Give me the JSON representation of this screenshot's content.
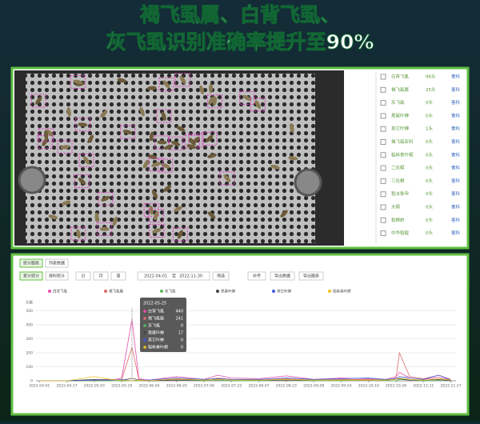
{
  "header": {
    "title_lines": [
      "褐飞虱属、白背飞虱、",
      "灰飞虱识别准确率提升至90%"
    ]
  },
  "species_list": [
    {
      "name": "白背飞虱",
      "count": "96头",
      "tag": "害科"
    },
    {
      "name": "褐飞虱属",
      "count": "25头",
      "tag": "害科"
    },
    {
      "name": "灰飞虱",
      "count": "0头",
      "tag": "害科"
    },
    {
      "name": "黑尾叶蝉",
      "count": "0头",
      "tag": "害科"
    },
    {
      "name": "其它叶蝉",
      "count": "1头",
      "tag": "害科"
    },
    {
      "name": "褐飞虱亚科",
      "count": "0头",
      "tag": "害科"
    },
    {
      "name": "稻纵卷叶螟",
      "count": "0头",
      "tag": "害科"
    },
    {
      "name": "二化螟",
      "count": "0头",
      "tag": "害科"
    },
    {
      "name": "三化螟",
      "count": "0头",
      "tag": "害科"
    },
    {
      "name": "稻水象甲",
      "count": "0头",
      "tag": "害科"
    },
    {
      "name": "大螟",
      "count": "0头",
      "tag": "害科"
    },
    {
      "name": "稻螟蛉",
      "count": "0头",
      "tag": "害科"
    },
    {
      "name": "中华稻蝗",
      "count": "0头",
      "tag": "害科"
    }
  ],
  "toolbar": {
    "tabs": [
      "统计图表",
      "列表数据"
    ],
    "buttons": [
      "累计统计",
      "按时统计",
      "日",
      "月",
      "周"
    ],
    "date_start": "2022-04-01",
    "date_sep": "至",
    "date_end": "2022-11-30",
    "actions": [
      "筛选",
      "补传",
      "导出数据",
      "导出图表"
    ]
  },
  "chart_data": {
    "type": "line",
    "y_label": "头数",
    "x": [
      "2022-04-01",
      "2022-04-17",
      "2022-05-03",
      "2022-05-15",
      "2022-05-19",
      "2022-05-25",
      "2022-05-29",
      "2022-06-04",
      "2022-06-20",
      "2022-07-06",
      "2022-07-14",
      "2022-07-22",
      "2022-08-07",
      "2022-08-23",
      "2022-09-08",
      "2022-09-24",
      "2022-10-10",
      "2022-10-20",
      "2022-10-26",
      "2022-10-28",
      "2022-11-03",
      "2022-11-11",
      "2022-11-20",
      "2022-11-27"
    ],
    "xlim": [
      "2022-03-30",
      "2022-11-30"
    ],
    "xticks": [
      "2022-04-01",
      "2022-04-17",
      "2022-05-03",
      "2022-05-19",
      "2022-06-04",
      "2022-06-20",
      "2022-07-06",
      "2022-07-22",
      "2022-08-07",
      "2022-08-23",
      "2022-09-08",
      "2022-09-24",
      "2022-10-10",
      "2022-10-26",
      "2022-11-11",
      "2022-11-27"
    ],
    "ylim": [
      0,
      520
    ],
    "yticks": [
      0,
      100,
      200,
      300,
      400,
      500
    ],
    "grid": true,
    "series": [
      {
        "name": "白背飞虱",
        "color": "#e64fb0",
        "values": [
          0,
          0,
          5,
          10,
          20,
          440,
          15,
          5,
          30,
          10,
          40,
          20,
          15,
          35,
          10,
          20,
          15,
          10,
          30,
          60,
          20,
          10,
          25,
          5
        ]
      },
      {
        "name": "褐飞虱属",
        "color": "#e06a6a",
        "values": [
          0,
          0,
          0,
          5,
          10,
          241,
          10,
          0,
          10,
          5,
          20,
          10,
          5,
          15,
          5,
          10,
          10,
          5,
          20,
          200,
          30,
          15,
          40,
          10
        ]
      },
      {
        "name": "灰飞虱",
        "color": "#5cb85c",
        "values": [
          0,
          0,
          0,
          0,
          0,
          0,
          0,
          0,
          5,
          0,
          5,
          0,
          0,
          5,
          0,
          0,
          5,
          0,
          0,
          10,
          5,
          0,
          5,
          0
        ]
      },
      {
        "name": "黑尾叶蝉",
        "color": "#444444",
        "values": [
          0,
          0,
          10,
          5,
          5,
          17,
          5,
          0,
          5,
          5,
          10,
          5,
          5,
          5,
          5,
          5,
          5,
          5,
          10,
          15,
          5,
          5,
          10,
          0
        ]
      },
      {
        "name": "其它叶蝉",
        "color": "#3b5bdb",
        "values": [
          0,
          0,
          5,
          5,
          10,
          0,
          5,
          5,
          20,
          10,
          15,
          10,
          10,
          20,
          10,
          15,
          20,
          10,
          15,
          30,
          20,
          10,
          40,
          5
        ]
      },
      {
        "name": "稻纵卷叶螟",
        "color": "#f0c020",
        "values": [
          0,
          0,
          30,
          5,
          5,
          0,
          5,
          0,
          15,
          5,
          10,
          5,
          5,
          10,
          5,
          5,
          5,
          5,
          10,
          20,
          10,
          5,
          15,
          5
        ]
      }
    ]
  }
}
